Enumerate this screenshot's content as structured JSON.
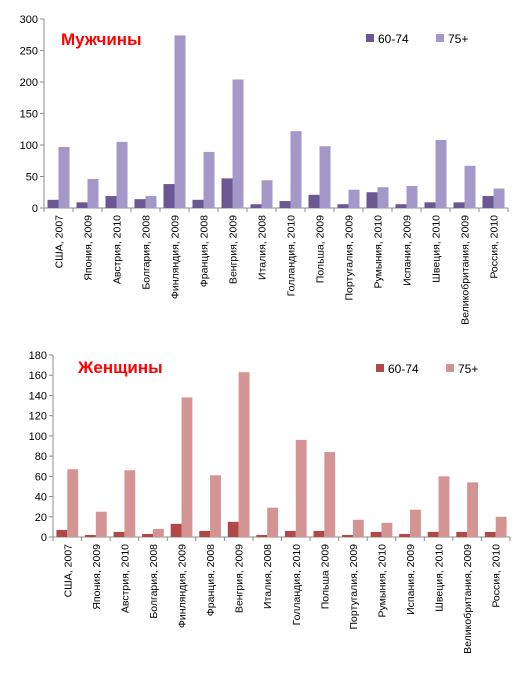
{
  "chart_data": [
    {
      "type": "bar",
      "title": "Мужчины",
      "categories": [
        "США, 2007",
        "Япония, 2009",
        "Австрия, 2010",
        "Болгария, 2008",
        "Финляндия, 2009",
        "Франция, 2008",
        "Венгрия, 2009",
        "Италия, 2008",
        "Голландия, 2010",
        "Польша, 2009",
        "Португалия, 2009",
        "Румыния, 2010",
        "Испания, 2009",
        "Швеция, 2010",
        "Великобритания, 2009",
        "Россия, 2010"
      ],
      "series": [
        {
          "name": "60-74",
          "values": [
            13,
            9,
            19,
            14,
            38,
            13,
            47,
            6,
            11,
            21,
            6,
            25,
            6,
            9,
            9,
            19
          ]
        },
        {
          "name": "75+",
          "values": [
            97,
            46,
            105,
            19,
            274,
            89,
            204,
            44,
            122,
            98,
            29,
            33,
            35,
            108,
            67,
            31
          ]
        }
      ],
      "ylim": [
        0,
        300
      ],
      "yticks": [
        0,
        50,
        100,
        150,
        200,
        250,
        300
      ],
      "legend": "top-right",
      "grid": false,
      "colors": {
        "60-74": "#6a5794",
        "75+": "#a498c8",
        "title": "#ff0000"
      }
    },
    {
      "type": "bar",
      "title": "Женщины",
      "categories": [
        "США, 2007",
        "Япония, 2009",
        "Австрия, 2010",
        "Болгария, 2008",
        "Финляндия, 2009",
        "Франция, 2008",
        "Венгрия, 2009",
        "Италия, 2008",
        "Голландия, 2010",
        "Польша 2009",
        "Португалия, 2009",
        "Румыния, 2010",
        "Испания, 2009",
        "Швеция, 2010",
        "Великобритания, 2009",
        "Россия, 2010"
      ],
      "series": [
        {
          "name": "60-74",
          "values": [
            7,
            2,
            5,
            3,
            13,
            6,
            15,
            2,
            6,
            6,
            2,
            5,
            3,
            5,
            5,
            5
          ]
        },
        {
          "name": "75+",
          "values": [
            67,
            25,
            66,
            8,
            138,
            61,
            163,
            29,
            96,
            84,
            17,
            14,
            27,
            60,
            54,
            20
          ]
        }
      ],
      "ylim": [
        0,
        180
      ],
      "yticks": [
        0,
        20,
        40,
        60,
        80,
        100,
        120,
        140,
        160,
        180
      ],
      "legend": "top-right",
      "grid": false,
      "colors": {
        "60-74": "#b04848",
        "75+": "#d49494",
        "title": "#ff0000"
      }
    }
  ]
}
